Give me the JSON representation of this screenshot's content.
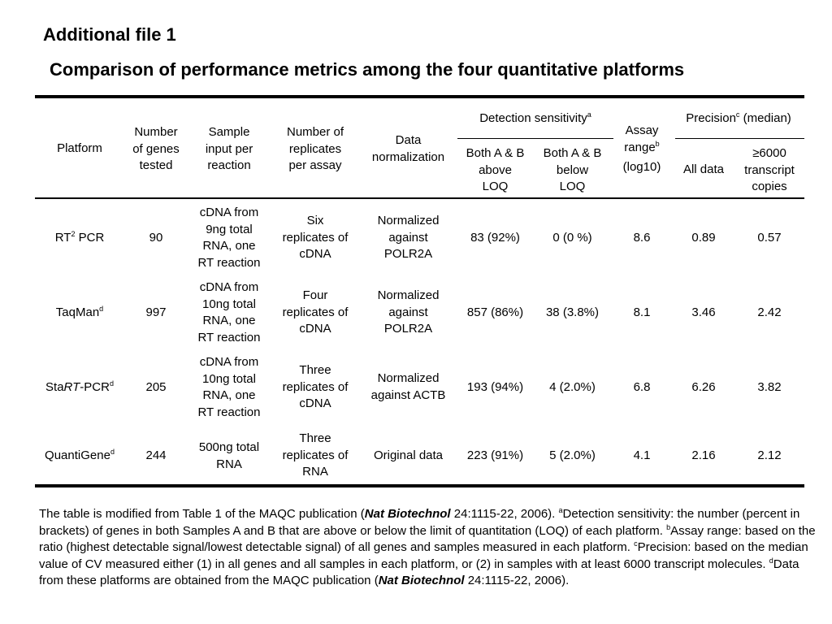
{
  "header": {
    "file_label": "Additional file 1",
    "title": "Comparison of performance metrics among the four quantitative platforms"
  },
  "table": {
    "columns": {
      "platform": "Platform",
      "genes_l1": "Number",
      "genes_l2": "of genes",
      "genes_l3": "tested",
      "input_l1": "Sample",
      "input_l2": "input per",
      "input_l3": "reaction",
      "reps_l1": "Number of",
      "reps_l2": "replicates",
      "reps_l3": "per assay",
      "norm_l1": "Data",
      "norm_l2": "normalization",
      "detection_group": "Detection sensitivity",
      "detection_sup": "a",
      "above_l1": "Both A & B",
      "above_l2": "above",
      "above_l3": "LOQ",
      "below_l1": "Both A & B",
      "below_l2": "below",
      "below_l3": "LOQ",
      "range_l1": "Assay",
      "range_l2": "range",
      "range_sup": "b",
      "range_l3": "(log10)",
      "precision_group_a": "Precision",
      "precision_sup": "c",
      "precision_group_b": " (median)",
      "all_data": "All data",
      "copies_l1": "≥6000",
      "copies_l2": "transcript",
      "copies_l3": "copies"
    },
    "rows": [
      {
        "platform": "RT",
        "platform_sup": "2",
        "platform_suffix": " PCR",
        "genes": "90",
        "input": [
          "cDNA from",
          "9ng total",
          "RNA, one",
          "RT reaction"
        ],
        "replicates": [
          "Six",
          "replicates of",
          "cDNA"
        ],
        "normalization": [
          "Normalized",
          "against",
          "POLR2A"
        ],
        "above": "83 (92%)",
        "below": "0 (0 %)",
        "range": "8.6",
        "prec_all": "0.89",
        "prec_6000": "0.57"
      },
      {
        "platform": "TaqMan",
        "platform_sup": "d",
        "genes": "997",
        "input": [
          "cDNA from",
          "10ng total",
          "RNA, one",
          "RT reaction"
        ],
        "replicates": [
          "Four",
          "replicates of",
          "cDNA"
        ],
        "normalization": [
          "Normalized",
          "against",
          "POLR2A"
        ],
        "above": "857 (86%)",
        "below": "38 (3.8%)",
        "range": "8.1",
        "prec_all": "3.46",
        "prec_6000": "2.42"
      },
      {
        "platform_prefix": "Sta",
        "platform_italic": "RT",
        "platform": "-PCR",
        "platform_sup": "d",
        "genes": "205",
        "input": [
          "cDNA from",
          "10ng total",
          "RNA, one",
          "RT reaction"
        ],
        "replicates": [
          "Three",
          "replicates of",
          "cDNA"
        ],
        "normalization": [
          "Normalized",
          "against ACTB"
        ],
        "above": "193 (94%)",
        "below": "4 (2.0%)",
        "range": "6.8",
        "prec_all": "6.26",
        "prec_6000": "3.82"
      },
      {
        "platform": "QuantiGene",
        "platform_sup": "d",
        "genes": "244",
        "input": [
          "500ng total",
          "RNA"
        ],
        "replicates": [
          "Three",
          "replicates of",
          "RNA"
        ],
        "normalization": [
          "Original data"
        ],
        "above": "223 (91%)",
        "below": "5 (2.0%)",
        "range": "4.1",
        "prec_all": "2.16",
        "prec_6000": "2.12"
      }
    ]
  },
  "footnote": {
    "p1": "The table is modified from Table 1 of the MAQC publication (",
    "journal1": "Nat Biotechnol",
    "p2": " 24:1115-22, 2006).  ",
    "sup_a": "a",
    "p3": "Detection sensitivity: the number (percent in brackets) of genes in both Samples A and B that are above or below the limit of quantitation (LOQ) of each platform.  ",
    "sup_b": "b",
    "p4": "Assay range: based on the ratio (highest detectable signal/lowest detectable signal) of all genes and samples measured in each platform. ",
    "sup_c": "c",
    "p5": "Precision: based on the median value of CV measured either (1) in all genes and all samples in each platform, or (2) in samples with at least 6000 transcript molecules. ",
    "sup_d": "d",
    "p6": "Data from these platforms are obtained from the MAQC publication (",
    "journal2": "Nat Biotechnol",
    "p7": " 24:1115-22, 2006)."
  }
}
